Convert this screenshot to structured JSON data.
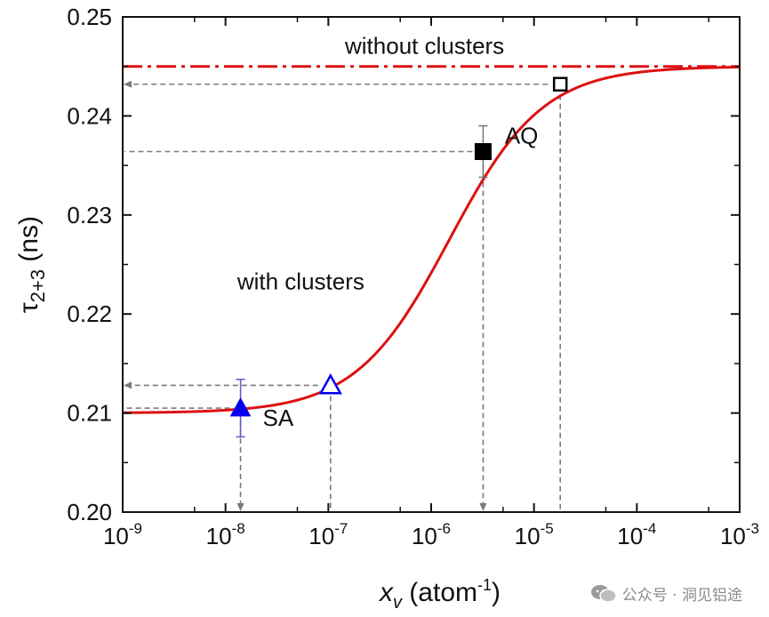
{
  "chart_data": {
    "type": "line",
    "xscale": "log",
    "xlim": [
      1e-09,
      0.001
    ],
    "ylim": [
      0.2,
      0.25
    ],
    "xlabel": {
      "base": "x",
      "sub": "v",
      "unit_pre": " (atom",
      "sup": "-1",
      "unit_post": ")"
    },
    "ylabel": {
      "base": "τ",
      "sub": "2+3",
      "unit": " (ns)"
    },
    "x_ticks": [
      {
        "mant": "10",
        "exp": "-9"
      },
      {
        "mant": "10",
        "exp": "-8"
      },
      {
        "mant": "10",
        "exp": "-7"
      },
      {
        "mant": "10",
        "exp": "-6"
      },
      {
        "mant": "10",
        "exp": "-5"
      },
      {
        "mant": "10",
        "exp": "-4"
      },
      {
        "mant": "10",
        "exp": "-3"
      }
    ],
    "y_ticks": [
      "0.20",
      "0.21",
      "0.22",
      "0.23",
      "0.24",
      "0.25"
    ],
    "curve": {
      "low": 0.21,
      "high": 0.245,
      "x_mid": 1.5e-06,
      "slope": 1.0,
      "color": "#dd1010"
    },
    "reference_line": {
      "label": "without clusters",
      "y": 0.245,
      "color": "#dd1010"
    },
    "annotations": [
      {
        "text": "with clusters",
        "x": 1.3e-08,
        "y": 0.2225
      },
      {
        "text": "AQ",
        "x": 5.2e-06,
        "y": 0.2372
      },
      {
        "text": "SA",
        "x": 2.3e-08,
        "y": 0.2087
      }
    ],
    "points": [
      {
        "name": "SA",
        "marker": "triangle",
        "filled": true,
        "color": "#0000ee",
        "x": 1.4e-08,
        "y": 0.2105,
        "yerr": 0.0029
      },
      {
        "name": "SA",
        "marker": "triangle",
        "filled": false,
        "color": "#0000ee",
        "x": 1.05e-07,
        "y": 0.2128
      },
      {
        "name": "AQ",
        "marker": "square",
        "filled": true,
        "color": "#000000",
        "x": 3.2e-06,
        "y": 0.2364,
        "yerr": 0.0026
      },
      {
        "name": "AQ",
        "marker": "square",
        "filled": false,
        "color": "#000000",
        "x": 1.8e-05,
        "y": 0.2432
      }
    ]
  },
  "watermark": {
    "text": "公众号 · 洞见铝途"
  }
}
